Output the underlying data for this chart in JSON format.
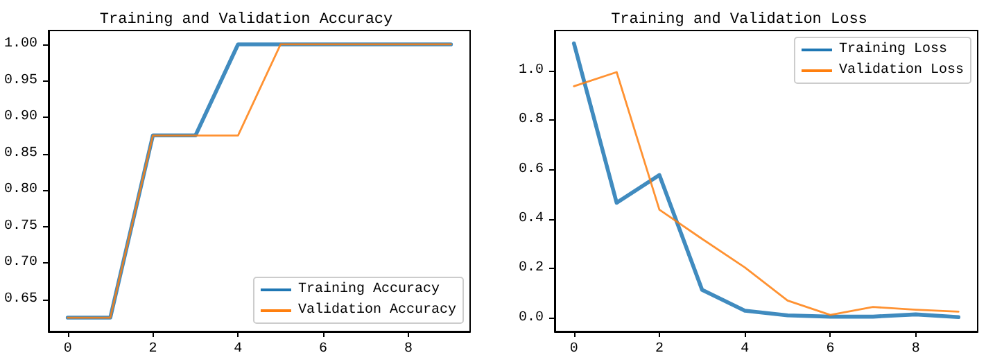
{
  "chart_data": [
    {
      "type": "line",
      "title": "Training and Validation Accuracy",
      "x": [
        0,
        1,
        2,
        3,
        4,
        5,
        6,
        7,
        8,
        9
      ],
      "series": [
        {
          "name": "Training Accuracy",
          "color": "#1f77b4",
          "values": [
            0.625,
            0.625,
            0.875,
            0.875,
            1.0,
            1.0,
            1.0,
            1.0,
            1.0,
            1.0
          ]
        },
        {
          "name": "Validation Accuracy",
          "color": "#ff7f0e",
          "values": [
            0.625,
            0.625,
            0.875,
            0.875,
            0.875,
            1.0,
            1.0,
            1.0,
            1.0,
            1.0
          ]
        }
      ],
      "xlim": [
        -0.45,
        9.45
      ],
      "xticks": [
        0,
        2,
        4,
        6,
        8
      ],
      "ylim": [
        0.606,
        1.019
      ],
      "yticks": [
        {
          "value": 0.65,
          "label": "0.65"
        },
        {
          "value": 0.7,
          "label": "0.70"
        },
        {
          "value": 0.75,
          "label": "0.75"
        },
        {
          "value": 0.8,
          "label": "0.80"
        },
        {
          "value": 0.85,
          "label": "0.85"
        },
        {
          "value": 0.9,
          "label": "0.90"
        },
        {
          "value": 0.95,
          "label": "0.95"
        },
        {
          "value": 1.0,
          "label": "1.00"
        }
      ],
      "grid": false,
      "legend": "bottom right",
      "marker": "none",
      "line_style": "solid"
    },
    {
      "type": "line",
      "title": "Training and Validation Loss",
      "x": [
        0,
        1,
        2,
        3,
        4,
        5,
        6,
        7,
        8,
        9
      ],
      "series": [
        {
          "name": "Training Loss",
          "color": "#1f77b4",
          "values": [
            1.11,
            0.466,
            0.578,
            0.114,
            0.03,
            0.011,
            0.006,
            0.006,
            0.015,
            0.004
          ]
        },
        {
          "name": "Validation Loss",
          "color": "#ff7f0e",
          "values": [
            0.937,
            0.994,
            0.438,
            0.32,
            0.205,
            0.071,
            0.013,
            0.045,
            0.034,
            0.026
          ]
        }
      ],
      "xlim": [
        -0.45,
        9.45
      ],
      "xticks": [
        0,
        2,
        4,
        6,
        8
      ],
      "ylim": [
        -0.054,
        1.162
      ],
      "yticks": [
        {
          "value": 0,
          "label": "0.0"
        },
        {
          "value": 0.2,
          "label": "0.2"
        },
        {
          "value": 0.4,
          "label": "0.4"
        },
        {
          "value": 0.6,
          "label": "0.6"
        },
        {
          "value": 0.8,
          "label": "0.8"
        },
        {
          "value": 1.0,
          "label": "1.0"
        }
      ],
      "grid": false,
      "legend": "top right",
      "marker": "none",
      "line_style": "solid"
    }
  ]
}
